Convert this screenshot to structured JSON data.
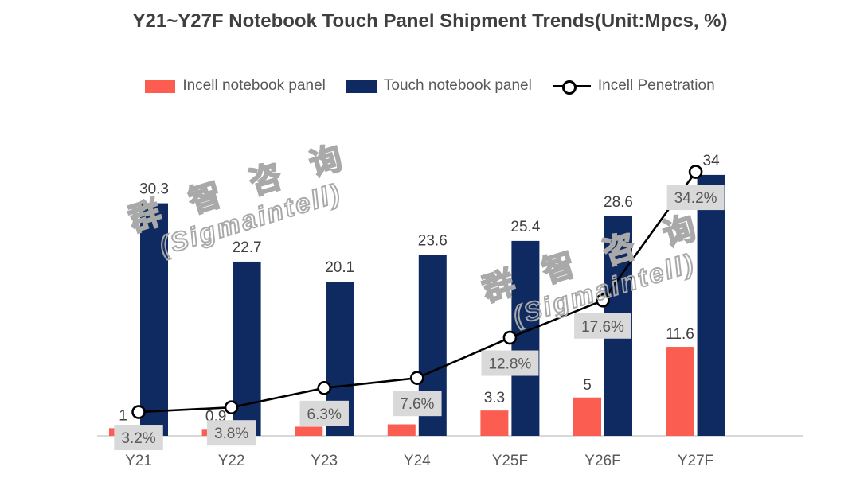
{
  "title": "Y21~Y27F Notebook Touch Panel Shipment Trends(Unit:Mpcs, %)",
  "legend": {
    "incell_label": "Incell notebook panel",
    "touch_label": "Touch notebook panel",
    "penetration_label": "Incell Penetration"
  },
  "watermark": {
    "line1": "群 智 咨 询",
    "line2": "(Sigmaintell)"
  },
  "colors": {
    "incell_bar": "#FB5D51",
    "touch_bar": "#0F2A60",
    "penetration_line": "#000000",
    "label_box_bg": "#D9D9D9",
    "label_box_text": "#595959",
    "bar_label_text": "#404040",
    "axis_line": "#D9D9D9",
    "axis_label_text": "#595959",
    "title_text": "#3F3F3F"
  },
  "chart_data": {
    "type": "bar",
    "subtype": "combo-bar-line",
    "title": "Y21~Y27F Notebook Touch Panel Shipment Trends(Unit:Mpcs, %)",
    "categories": [
      "Y21",
      "Y22",
      "Y23",
      "Y24",
      "Y25F",
      "Y26F",
      "Y27F"
    ],
    "series": [
      {
        "name": "Incell notebook panel",
        "type": "bar",
        "axis": "primary",
        "unit": "Mpcs",
        "values": [
          1,
          0.9,
          1.2,
          1.5,
          3.3,
          5,
          11.6
        ],
        "labels": [
          "1",
          "0.9",
          "",
          "",
          "3.3",
          "5",
          "11.6"
        ]
      },
      {
        "name": "Touch notebook panel",
        "type": "bar",
        "axis": "primary",
        "unit": "Mpcs",
        "values": [
          30.3,
          22.7,
          20.1,
          23.6,
          25.4,
          28.6,
          34
        ],
        "labels": [
          "30.3",
          "22.7",
          "20.1",
          "23.6",
          "25.4",
          "28.6",
          "34"
        ]
      },
      {
        "name": "Incell Penetration",
        "type": "line",
        "axis": "secondary",
        "unit": "%",
        "values": [
          3.2,
          3.8,
          6.3,
          7.6,
          12.8,
          17.6,
          34.2
        ],
        "labels": [
          "3.2%",
          "3.8%",
          "6.3%",
          "7.6%",
          "12.8%",
          "17.6%",
          "34.2%"
        ]
      }
    ],
    "xlabel": "",
    "ylabel": "",
    "ylim_primary": [
      0,
      38
    ],
    "ylim_secondary_pct": [
      0,
      38
    ],
    "gridlines": false,
    "legend_position": "top",
    "data_labels_visible": true,
    "note": "Incell bar labels for Y23/Y24 are hidden behind penetration label boxes; bar values estimated from bar heights."
  }
}
